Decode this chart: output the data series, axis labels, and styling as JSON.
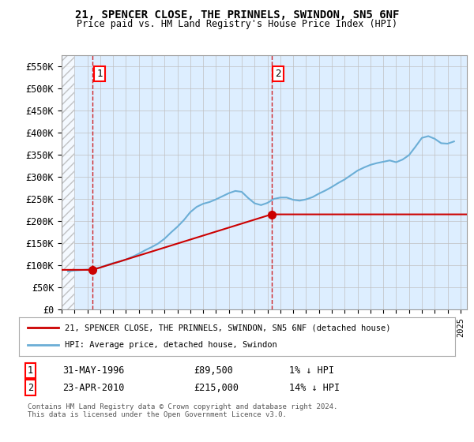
{
  "title": "21, SPENCER CLOSE, THE PRINNELS, SWINDON, SN5 6NF",
  "subtitle": "Price paid vs. HM Land Registry's House Price Index (HPI)",
  "ylabel_ticks": [
    "£0",
    "£50K",
    "£100K",
    "£150K",
    "£200K",
    "£250K",
    "£300K",
    "£350K",
    "£400K",
    "£450K",
    "£500K",
    "£550K"
  ],
  "ytick_values": [
    0,
    50000,
    100000,
    150000,
    200000,
    250000,
    300000,
    350000,
    400000,
    450000,
    500000,
    550000
  ],
  "ylim": [
    0,
    575000
  ],
  "sale1_date": 1996.42,
  "sale1_price": 89500,
  "sale2_date": 2010.31,
  "sale2_price": 215000,
  "hpi_color": "#6baed6",
  "sale_color": "#cc0000",
  "grid_color": "#c0c0c0",
  "background_plot": "#ddeeff",
  "legend_label1": "21, SPENCER CLOSE, THE PRINNELS, SWINDON, SN5 6NF (detached house)",
  "legend_label2": "HPI: Average price, detached house, Swindon",
  "table_row1": [
    "1",
    "31-MAY-1996",
    "£89,500",
    "1% ↓ HPI"
  ],
  "table_row2": [
    "2",
    "23-APR-2010",
    "£215,000",
    "14% ↓ HPI"
  ],
  "footnote": "Contains HM Land Registry data © Crown copyright and database right 2024.\nThis data is licensed under the Open Government Licence v3.0.",
  "xmin": 1994,
  "xmax": 2025.5,
  "hpi_dates": [
    1994.5,
    1995.0,
    1995.5,
    1996.0,
    1996.5,
    1997.0,
    1997.5,
    1998.0,
    1998.5,
    1999.0,
    1999.5,
    2000.0,
    2000.5,
    2001.0,
    2001.5,
    2002.0,
    2002.5,
    2003.0,
    2003.5,
    2004.0,
    2004.5,
    2005.0,
    2005.5,
    2006.0,
    2006.5,
    2007.0,
    2007.5,
    2008.0,
    2008.5,
    2009.0,
    2009.5,
    2010.0,
    2010.5,
    2011.0,
    2011.5,
    2012.0,
    2012.5,
    2013.0,
    2013.5,
    2014.0,
    2014.5,
    2015.0,
    2015.5,
    2016.0,
    2016.5,
    2017.0,
    2017.5,
    2018.0,
    2018.5,
    2019.0,
    2019.5,
    2020.0,
    2020.5,
    2021.0,
    2021.5,
    2022.0,
    2022.5,
    2023.0,
    2023.5,
    2024.0,
    2024.5
  ],
  "hpi_values": [
    86000,
    88000,
    89000,
    90000,
    91500,
    95000,
    100000,
    105000,
    108000,
    113000,
    119000,
    126000,
    134000,
    141000,
    149000,
    160000,
    174000,
    187000,
    202000,
    220000,
    232000,
    239000,
    243000,
    249000,
    256000,
    263000,
    268000,
    266000,
    252000,
    240000,
    236000,
    241000,
    250000,
    253000,
    253000,
    248000,
    246000,
    249000,
    254000,
    262000,
    269000,
    277000,
    286000,
    294000,
    304000,
    314000,
    321000,
    327000,
    331000,
    334000,
    337000,
    333000,
    339000,
    349000,
    368000,
    388000,
    392000,
    386000,
    376000,
    375000,
    380000
  ]
}
